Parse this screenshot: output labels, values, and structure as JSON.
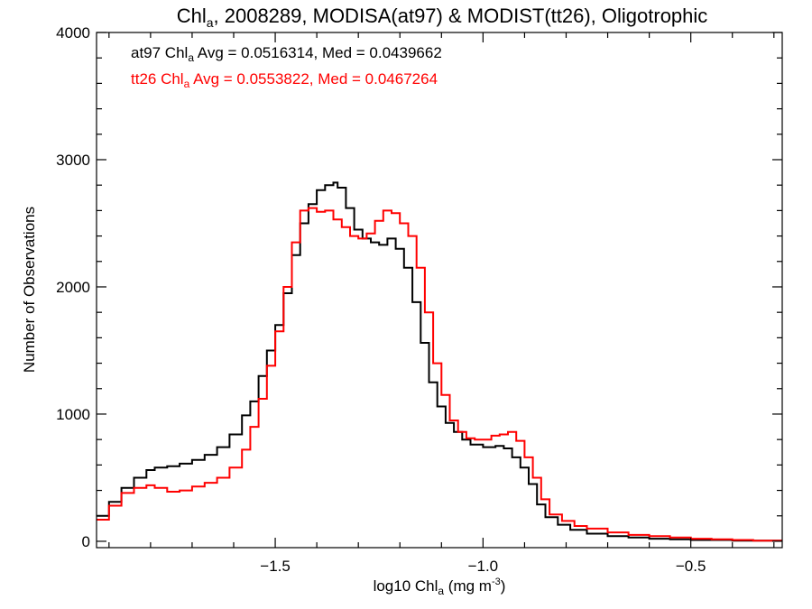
{
  "chart_data": {
    "type": "line",
    "step": true,
    "title": {
      "main": "Chl",
      "sub": "a",
      "rest": ", 2008289, MODISA(at97) & MODIST(tt26), Oligotrophic"
    },
    "xlabel": {
      "prefix": "log10 Chl",
      "sub": "a",
      "mid": " (mg m",
      "sup": "-3",
      "suffix": ")"
    },
    "ylabel": "Number of Observations",
    "xlim": [
      -1.93,
      -0.28
    ],
    "ylim": [
      -50,
      4000
    ],
    "xticks": [
      {
        "value": -1.5,
        "label": "−1.5"
      },
      {
        "value": -1.0,
        "label": "−1.0"
      },
      {
        "value": -0.5,
        "label": "−0.5"
      }
    ],
    "yticks": [
      {
        "value": 0,
        "label": "0"
      },
      {
        "value": 1000,
        "label": "1000"
      },
      {
        "value": 2000,
        "label": "2000"
      },
      {
        "value": 3000,
        "label": "3000"
      },
      {
        "value": 4000,
        "label": "4000"
      }
    ],
    "grid": false,
    "series": [
      {
        "name": "at97",
        "color": "#000000",
        "stats": {
          "prefix": "at97 Chl",
          "sub": "a",
          "text": " Avg = 0.0516314, Med = 0.0439662"
        },
        "points": [
          [
            -1.93,
            200
          ],
          [
            -1.9,
            310
          ],
          [
            -1.87,
            420
          ],
          [
            -1.84,
            500
          ],
          [
            -1.81,
            560
          ],
          [
            -1.79,
            580
          ],
          [
            -1.76,
            590
          ],
          [
            -1.73,
            610
          ],
          [
            -1.7,
            640
          ],
          [
            -1.67,
            680
          ],
          [
            -1.64,
            740
          ],
          [
            -1.61,
            840
          ],
          [
            -1.58,
            990
          ],
          [
            -1.56,
            1100
          ],
          [
            -1.54,
            1300
          ],
          [
            -1.52,
            1500
          ],
          [
            -1.5,
            1700
          ],
          [
            -1.48,
            1950
          ],
          [
            -1.46,
            2250
          ],
          [
            -1.44,
            2500
          ],
          [
            -1.42,
            2650
          ],
          [
            -1.4,
            2760
          ],
          [
            -1.38,
            2800
          ],
          [
            -1.36,
            2820
          ],
          [
            -1.35,
            2780
          ],
          [
            -1.33,
            2620
          ],
          [
            -1.31,
            2450
          ],
          [
            -1.29,
            2380
          ],
          [
            -1.27,
            2350
          ],
          [
            -1.25,
            2330
          ],
          [
            -1.23,
            2380
          ],
          [
            -1.21,
            2300
          ],
          [
            -1.19,
            2150
          ],
          [
            -1.17,
            1880
          ],
          [
            -1.15,
            1560
          ],
          [
            -1.13,
            1250
          ],
          [
            -1.11,
            1060
          ],
          [
            -1.09,
            930
          ],
          [
            -1.07,
            860
          ],
          [
            -1.05,
            800
          ],
          [
            -1.03,
            760
          ],
          [
            -1.0,
            740
          ],
          [
            -0.97,
            750
          ],
          [
            -0.95,
            730
          ],
          [
            -0.93,
            660
          ],
          [
            -0.91,
            580
          ],
          [
            -0.89,
            450
          ],
          [
            -0.87,
            290
          ],
          [
            -0.85,
            190
          ],
          [
            -0.82,
            130
          ],
          [
            -0.79,
            90
          ],
          [
            -0.75,
            60
          ],
          [
            -0.7,
            40
          ],
          [
            -0.65,
            30
          ],
          [
            -0.6,
            20
          ],
          [
            -0.55,
            15
          ],
          [
            -0.5,
            10
          ],
          [
            -0.45,
            10
          ],
          [
            -0.4,
            5
          ],
          [
            -0.35,
            5
          ],
          [
            -0.28,
            5
          ]
        ]
      },
      {
        "name": "tt26",
        "color": "#ff0000",
        "stats": {
          "prefix": "tt26 Chl",
          "sub": "a",
          "text": " Avg = 0.0553822, Med = 0.0467264"
        },
        "points": [
          [
            -1.93,
            170
          ],
          [
            -1.9,
            280
          ],
          [
            -1.87,
            380
          ],
          [
            -1.84,
            420
          ],
          [
            -1.81,
            440
          ],
          [
            -1.79,
            420
          ],
          [
            -1.76,
            390
          ],
          [
            -1.73,
            400
          ],
          [
            -1.7,
            430
          ],
          [
            -1.67,
            460
          ],
          [
            -1.64,
            500
          ],
          [
            -1.61,
            580
          ],
          [
            -1.58,
            720
          ],
          [
            -1.56,
            900
          ],
          [
            -1.54,
            1120
          ],
          [
            -1.52,
            1380
          ],
          [
            -1.5,
            1650
          ],
          [
            -1.48,
            2000
          ],
          [
            -1.46,
            2350
          ],
          [
            -1.44,
            2600
          ],
          [
            -1.42,
            2620
          ],
          [
            -1.4,
            2590
          ],
          [
            -1.38,
            2600
          ],
          [
            -1.36,
            2530
          ],
          [
            -1.34,
            2470
          ],
          [
            -1.32,
            2400
          ],
          [
            -1.3,
            2380
          ],
          [
            -1.28,
            2420
          ],
          [
            -1.26,
            2520
          ],
          [
            -1.24,
            2600
          ],
          [
            -1.22,
            2580
          ],
          [
            -1.2,
            2500
          ],
          [
            -1.18,
            2400
          ],
          [
            -1.16,
            2150
          ],
          [
            -1.14,
            1800
          ],
          [
            -1.12,
            1400
          ],
          [
            -1.1,
            1150
          ],
          [
            -1.08,
            950
          ],
          [
            -1.06,
            860
          ],
          [
            -1.04,
            810
          ],
          [
            -1.02,
            800
          ],
          [
            -1.0,
            800
          ],
          [
            -0.98,
            830
          ],
          [
            -0.96,
            840
          ],
          [
            -0.94,
            860
          ],
          [
            -0.92,
            790
          ],
          [
            -0.9,
            660
          ],
          [
            -0.88,
            500
          ],
          [
            -0.86,
            330
          ],
          [
            -0.84,
            210
          ],
          [
            -0.81,
            160
          ],
          [
            -0.78,
            120
          ],
          [
            -0.75,
            100
          ],
          [
            -0.7,
            70
          ],
          [
            -0.65,
            50
          ],
          [
            -0.6,
            40
          ],
          [
            -0.55,
            30
          ],
          [
            -0.5,
            20
          ],
          [
            -0.45,
            15
          ],
          [
            -0.4,
            10
          ],
          [
            -0.35,
            5
          ],
          [
            -0.28,
            5
          ]
        ]
      }
    ]
  }
}
